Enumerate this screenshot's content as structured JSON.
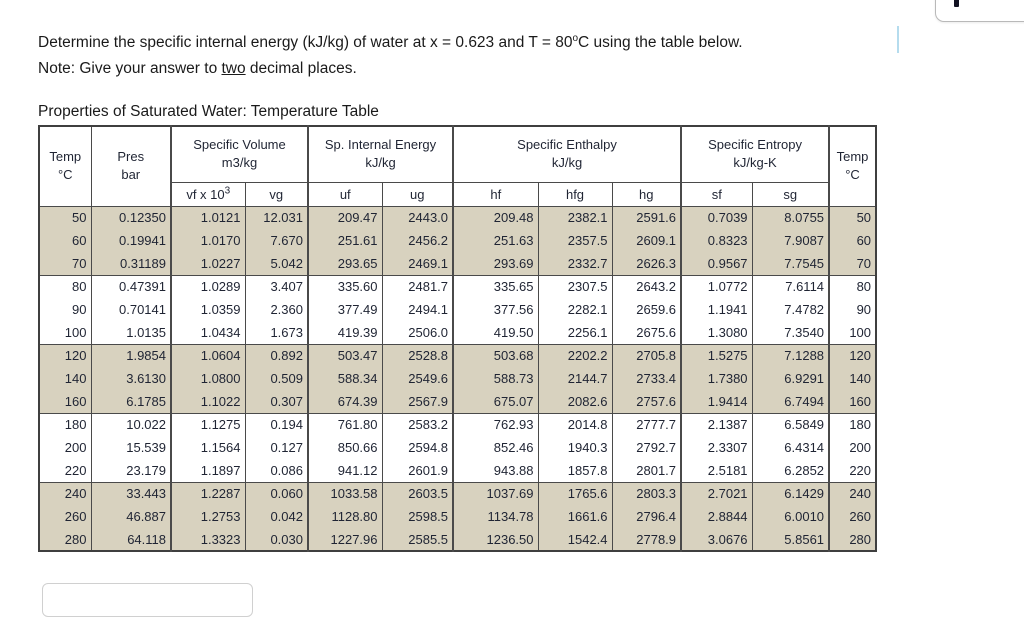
{
  "question": {
    "line1_part1": "Determine the specific internal energy (kJ/kg) of water at x = 0.623 and T = 80",
    "line1_sup": "o",
    "line1_part2": "C using the table below.",
    "note_prefix": "Note: Give your answer to ",
    "note_underlined": "two",
    "note_suffix": " decimal places."
  },
  "table": {
    "title": "Properties of Saturated Water: Temperature Table",
    "headers": {
      "temp_label": "Temp",
      "temp_unit": "°C",
      "pres_label": "Pres",
      "pres_unit": "bar",
      "groups": [
        {
          "label": "Specific Volume",
          "unit": "m3/kg"
        },
        {
          "label": "Sp. Internal Energy",
          "unit": "kJ/kg"
        },
        {
          "label": "Specific Enthalpy",
          "unit": "kJ/kg"
        },
        {
          "label": "Specific Entropy",
          "unit": "kJ/kg-K"
        }
      ],
      "sub": {
        "vf_base": "vf x 10",
        "vf_sup": "3",
        "vg": "vg",
        "uf": "uf",
        "ug": "ug",
        "hf": "hf",
        "hfg": "hfg",
        "hg": "hg",
        "sf": "sf",
        "sg": "sg"
      },
      "temp_label_right": "Temp",
      "temp_unit_right": "°C"
    },
    "rows": [
      {
        "shaded": true,
        "group_start": false,
        "cells": [
          "50",
          "0.12350",
          "1.0121",
          "12.031",
          "209.47",
          "2443.0",
          "209.48",
          "2382.1",
          "2591.6",
          "0.7039",
          "8.0755",
          "50"
        ]
      },
      {
        "shaded": true,
        "group_start": false,
        "cells": [
          "60",
          "0.19941",
          "1.0170",
          "7.670",
          "251.61",
          "2456.2",
          "251.63",
          "2357.5",
          "2609.1",
          "0.8323",
          "7.9087",
          "60"
        ]
      },
      {
        "shaded": true,
        "group_start": false,
        "cells": [
          "70",
          "0.31189",
          "1.0227",
          "5.042",
          "293.65",
          "2469.1",
          "293.69",
          "2332.7",
          "2626.3",
          "0.9567",
          "7.7545",
          "70"
        ]
      },
      {
        "shaded": false,
        "group_start": true,
        "cells": [
          "80",
          "0.47391",
          "1.0289",
          "3.407",
          "335.60",
          "2481.7",
          "335.65",
          "2307.5",
          "2643.2",
          "1.0772",
          "7.6114",
          "80"
        ]
      },
      {
        "shaded": false,
        "group_start": false,
        "cells": [
          "90",
          "0.70141",
          "1.0359",
          "2.360",
          "377.49",
          "2494.1",
          "377.56",
          "2282.1",
          "2659.6",
          "1.1941",
          "7.4782",
          "90"
        ]
      },
      {
        "shaded": false,
        "group_start": false,
        "cells": [
          "100",
          "1.0135",
          "1.0434",
          "1.673",
          "419.39",
          "2506.0",
          "419.50",
          "2256.1",
          "2675.6",
          "1.3080",
          "7.3540",
          "100"
        ]
      },
      {
        "shaded": true,
        "group_start": true,
        "cells": [
          "120",
          "1.9854",
          "1.0604",
          "0.892",
          "503.47",
          "2528.8",
          "503.68",
          "2202.2",
          "2705.8",
          "1.5275",
          "7.1288",
          "120"
        ]
      },
      {
        "shaded": true,
        "group_start": false,
        "cells": [
          "140",
          "3.6130",
          "1.0800",
          "0.509",
          "588.34",
          "2549.6",
          "588.73",
          "2144.7",
          "2733.4",
          "1.7380",
          "6.9291",
          "140"
        ]
      },
      {
        "shaded": true,
        "group_start": false,
        "cells": [
          "160",
          "6.1785",
          "1.1022",
          "0.307",
          "674.39",
          "2567.9",
          "675.07",
          "2082.6",
          "2757.6",
          "1.9414",
          "6.7494",
          "160"
        ]
      },
      {
        "shaded": false,
        "group_start": true,
        "cells": [
          "180",
          "10.022",
          "1.1275",
          "0.194",
          "761.80",
          "2583.2",
          "762.93",
          "2014.8",
          "2777.7",
          "2.1387",
          "6.5849",
          "180"
        ]
      },
      {
        "shaded": false,
        "group_start": false,
        "cells": [
          "200",
          "15.539",
          "1.1564",
          "0.127",
          "850.66",
          "2594.8",
          "852.46",
          "1940.3",
          "2792.7",
          "2.3307",
          "6.4314",
          "200"
        ]
      },
      {
        "shaded": false,
        "group_start": false,
        "cells": [
          "220",
          "23.179",
          "1.1897",
          "0.086",
          "941.12",
          "2601.9",
          "943.88",
          "1857.8",
          "2801.7",
          "2.5181",
          "6.2852",
          "220"
        ]
      },
      {
        "shaded": true,
        "group_start": true,
        "cells": [
          "240",
          "33.443",
          "1.2287",
          "0.060",
          "1033.58",
          "2603.5",
          "1037.69",
          "1765.6",
          "2803.3",
          "2.7021",
          "6.1429",
          "240"
        ]
      },
      {
        "shaded": true,
        "group_start": false,
        "cells": [
          "260",
          "46.887",
          "1.2753",
          "0.042",
          "1128.80",
          "2598.5",
          "1134.78",
          "1661.6",
          "2796.4",
          "2.8844",
          "6.0010",
          "260"
        ]
      },
      {
        "shaded": true,
        "group_start": false,
        "cells": [
          "280",
          "64.118",
          "1.3323",
          "0.030",
          "1227.96",
          "2585.5",
          "1236.50",
          "1542.4",
          "2778.9",
          "3.0676",
          "5.8561",
          "280"
        ]
      }
    ]
  },
  "answer_input": {
    "value": "",
    "placeholder": ""
  },
  "colors": {
    "row-shade": "#d8d2bf",
    "table-border": "#3f3f3f",
    "grid-line": "#4a4a4a",
    "caret": "#b5dcee",
    "table-text": "#1f2433",
    "body-text": "#1a1a1a"
  }
}
